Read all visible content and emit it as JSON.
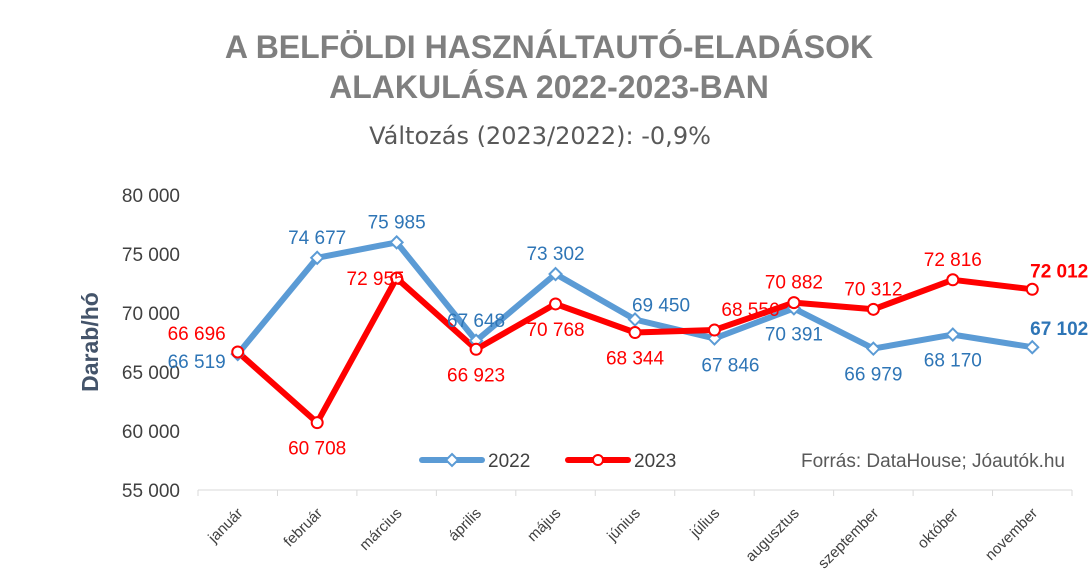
{
  "chart_data": {
    "type": "line",
    "title": [
      "A BELFÖLDI HASZNÁLTAUTÓ-ELADÁSOK",
      "ALAKULÁSA 2022-2023-BAN"
    ],
    "subtitle": "Változás (2023/2022): -0,9%",
    "ylabel": "Darab/hó",
    "xlabel": "",
    "ylim": [
      55000,
      80000
    ],
    "yticks": [
      55000,
      60000,
      65000,
      70000,
      75000,
      80000
    ],
    "ytick_labels": [
      "55 000",
      "60 000",
      "65 000",
      "70 000",
      "75 000",
      "80 000"
    ],
    "categories": [
      "január",
      "február",
      "március",
      "április",
      "május",
      "június",
      "július",
      "augusztus",
      "szeptember",
      "október",
      "november"
    ],
    "series": [
      {
        "name": "2022",
        "color": "#5b9bd5",
        "label_color": "#2e75b6",
        "marker": "diamond",
        "values": [
          66519,
          74677,
          75985,
          67648,
          73302,
          69450,
          67846,
          70391,
          66979,
          68170,
          67102
        ],
        "labels": [
          "66 519",
          "74 677",
          "75 985",
          "67 648",
          "73 302",
          "69 450",
          "67 846",
          "70 391",
          "66 979",
          "68 170",
          "67 102"
        ]
      },
      {
        "name": "2023",
        "color": "#ff0000",
        "label_color": "#ff0000",
        "marker": "circle",
        "values": [
          66696,
          60708,
          72955,
          66923,
          70768,
          68344,
          68556,
          70882,
          70312,
          72816,
          72012
        ],
        "labels": [
          "66 696",
          "60 708",
          "72 955",
          "66 923",
          "70 768",
          "68 344",
          "68 556",
          "70 882",
          "70 312",
          "72 816",
          "72 012"
        ]
      }
    ],
    "legend_position": "bottom-center",
    "grid": false,
    "source": "Forrás: DataHouse; Jóautók.hu"
  }
}
